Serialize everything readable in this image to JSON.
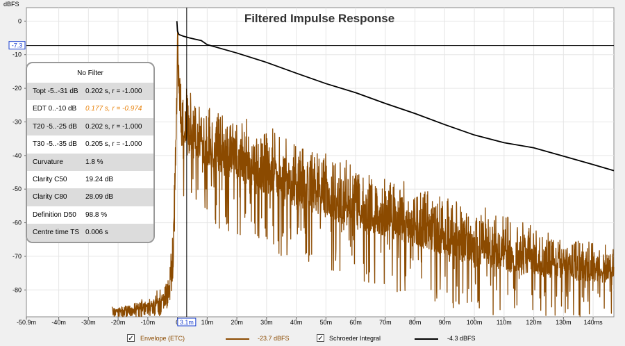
{
  "chart_data": {
    "type": "line",
    "title": "Filtered Impulse Response",
    "ylabel": "dBFS",
    "xlabel": "",
    "xlim": [
      -50.9,
      147
    ],
    "ylim": [
      -88,
      4
    ],
    "x_ticks": [
      {
        "v": -50.9,
        "label": "-50.9m"
      },
      {
        "v": -40,
        "label": "-40m"
      },
      {
        "v": -30,
        "label": "-30m"
      },
      {
        "v": -20,
        "label": "-20m"
      },
      {
        "v": -10,
        "label": "-10m"
      },
      {
        "v": 0,
        "label": "0"
      },
      {
        "v": 10,
        "label": "10m"
      },
      {
        "v": 20,
        "label": "20m"
      },
      {
        "v": 30,
        "label": "30m"
      },
      {
        "v": 40,
        "label": "40m"
      },
      {
        "v": 50,
        "label": "50m"
      },
      {
        "v": 60,
        "label": "60m"
      },
      {
        "v": 70,
        "label": "70m"
      },
      {
        "v": 80,
        "label": "80m"
      },
      {
        "v": 90,
        "label": "90m"
      },
      {
        "v": 100,
        "label": "100m"
      },
      {
        "v": 110,
        "label": "110m"
      },
      {
        "v": 120,
        "label": "120m"
      },
      {
        "v": 130,
        "label": "130m"
      },
      {
        "v": 140,
        "label": "140ms"
      }
    ],
    "y_ticks": [
      {
        "v": 0,
        "label": "0"
      },
      {
        "v": -10,
        "label": "-10"
      },
      {
        "v": -20,
        "label": "-20"
      },
      {
        "v": -30,
        "label": "-30"
      },
      {
        "v": -40,
        "label": "-40"
      },
      {
        "v": -50,
        "label": "-50"
      },
      {
        "v": -60,
        "label": "-60"
      },
      {
        "v": -70,
        "label": "-70"
      },
      {
        "v": -80,
        "label": "-80"
      }
    ],
    "cursor": {
      "x": 3.1,
      "x_label": "3.1m",
      "y": -7.3,
      "y_label": "-7.3"
    },
    "grid": true,
    "legend_position": "bottom",
    "series": [
      {
        "name": "Envelope (ETC)",
        "color": "#8b4a00",
        "readout": "-23.7 dBFS",
        "x": [
          -22,
          -20,
          -15,
          -10,
          -8,
          -6,
          -4,
          -2.5,
          -1.5,
          -0.8,
          -0.2,
          0,
          0.6,
          1.5,
          3,
          5,
          10,
          20,
          30,
          40,
          50,
          60,
          70,
          80,
          90,
          100,
          110,
          120,
          130,
          140,
          147
        ],
        "upper": [
          -85,
          -85,
          -84,
          -82,
          -81,
          -79,
          -78,
          -73,
          -60,
          -40,
          -15,
          0,
          -10,
          -18,
          -20,
          -22,
          -24,
          -28,
          -31,
          -35,
          -38,
          -42,
          -45,
          -48,
          -51,
          -54,
          -57,
          -61,
          -63,
          -65,
          -67
        ],
        "lower": [
          -88,
          -88,
          -88,
          -88,
          -88,
          -88,
          -86,
          -84,
          -76,
          -60,
          -35,
          -5,
          -40,
          -56,
          -50,
          -52,
          -60,
          -64,
          -68,
          -72,
          -75,
          -78,
          -80,
          -83,
          -85,
          -87,
          -88,
          -88,
          -88,
          -88,
          -88
        ]
      },
      {
        "name": "Schroeder Integral",
        "color": "#000000",
        "readout": "-4.3 dBFS",
        "x": [
          -0.2,
          0,
          0.5,
          2,
          4,
          6,
          8,
          10,
          20,
          30,
          40,
          50,
          60,
          70,
          80,
          90,
          100,
          110,
          120,
          130,
          140,
          147
        ],
        "y": [
          0,
          -3,
          -4,
          -4.5,
          -5,
          -5.4,
          -5.8,
          -7,
          -9.5,
          -12.3,
          -15.5,
          -18.6,
          -21.3,
          -24.5,
          -27.5,
          -30.8,
          -33.9,
          -36.2,
          -37.7,
          -40.2,
          -42.7,
          -44.5
        ]
      }
    ],
    "annotations": {
      "panel_title": "No Filter",
      "rows": [
        {
          "label": "Topt -5..-31 dB",
          "value": "0.202 s,  r = -1.000",
          "highlight": false
        },
        {
          "label": "EDT  0..-10 dB",
          "value": "0.177 s,  r = -0.974",
          "highlight": true
        },
        {
          "label": "T20 -5..-25 dB",
          "value": "0.202 s,  r = -1.000",
          "highlight": false
        },
        {
          "label": "T30 -5..-35 dB",
          "value": "0.205 s,  r = -1.000",
          "highlight": false
        },
        {
          "label": "Curvature",
          "value": "1.8 %",
          "highlight": false
        },
        {
          "label": "Clarity C50",
          "value": "19.24 dB",
          "highlight": false
        },
        {
          "label": "Clarity C80",
          "value": "28.09 dB",
          "highlight": false
        },
        {
          "label": "Definition D50",
          "value": "98.8 %",
          "highlight": false
        },
        {
          "label": "Centre time TS",
          "value": "0.006 s",
          "highlight": false
        }
      ]
    }
  },
  "legend": {
    "items": [
      {
        "checked": true,
        "check_mark": "✓",
        "label": "Envelope (ETC)",
        "readout": "-23.7 dBFS",
        "color": "#8b4a00",
        "label_color": "#8b4a00"
      },
      {
        "checked": true,
        "check_mark": "✓",
        "label": "Schroeder Integral",
        "readout": "-4.3 dBFS",
        "color": "#000000",
        "label_color": "#000000"
      }
    ]
  }
}
